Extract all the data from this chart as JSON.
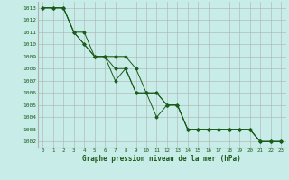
{
  "title": "Graphe pression niveau de la mer (hPa)",
  "bg_color": "#c8ece8",
  "grid_color": "#b0b0b0",
  "line_color": "#1a5c1a",
  "xlim": [
    -0.5,
    23.5
  ],
  "ylim": [
    1001.5,
    1013.5
  ],
  "yticks": [
    1002,
    1003,
    1004,
    1005,
    1006,
    1007,
    1008,
    1009,
    1010,
    1011,
    1012,
    1013
  ],
  "xticks": [
    0,
    1,
    2,
    3,
    4,
    5,
    6,
    7,
    8,
    9,
    10,
    11,
    12,
    13,
    14,
    15,
    16,
    17,
    18,
    19,
    20,
    21,
    22,
    23
  ],
  "series": [
    [
      1013,
      1013,
      1013,
      1011,
      1011,
      1009,
      1009,
      1009,
      1009,
      1008,
      1006,
      1006,
      1005,
      1005,
      1003,
      1003,
      1003,
      1003,
      1003,
      1003,
      1003,
      1002,
      1002,
      1002
    ],
    [
      1013,
      1013,
      1013,
      1011,
      1010,
      1009,
      1009,
      1008,
      1008,
      1006,
      1006,
      1006,
      1005,
      1005,
      1003,
      1003,
      1003,
      1003,
      1003,
      1003,
      1003,
      1002,
      1002,
      1002
    ],
    [
      1013,
      1013,
      1013,
      1011,
      1010,
      1009,
      1009,
      1007,
      1008,
      1006,
      1006,
      1004,
      1005,
      1005,
      1003,
      1003,
      1003,
      1003,
      1003,
      1003,
      1003,
      1002,
      1002,
      1002
    ]
  ]
}
